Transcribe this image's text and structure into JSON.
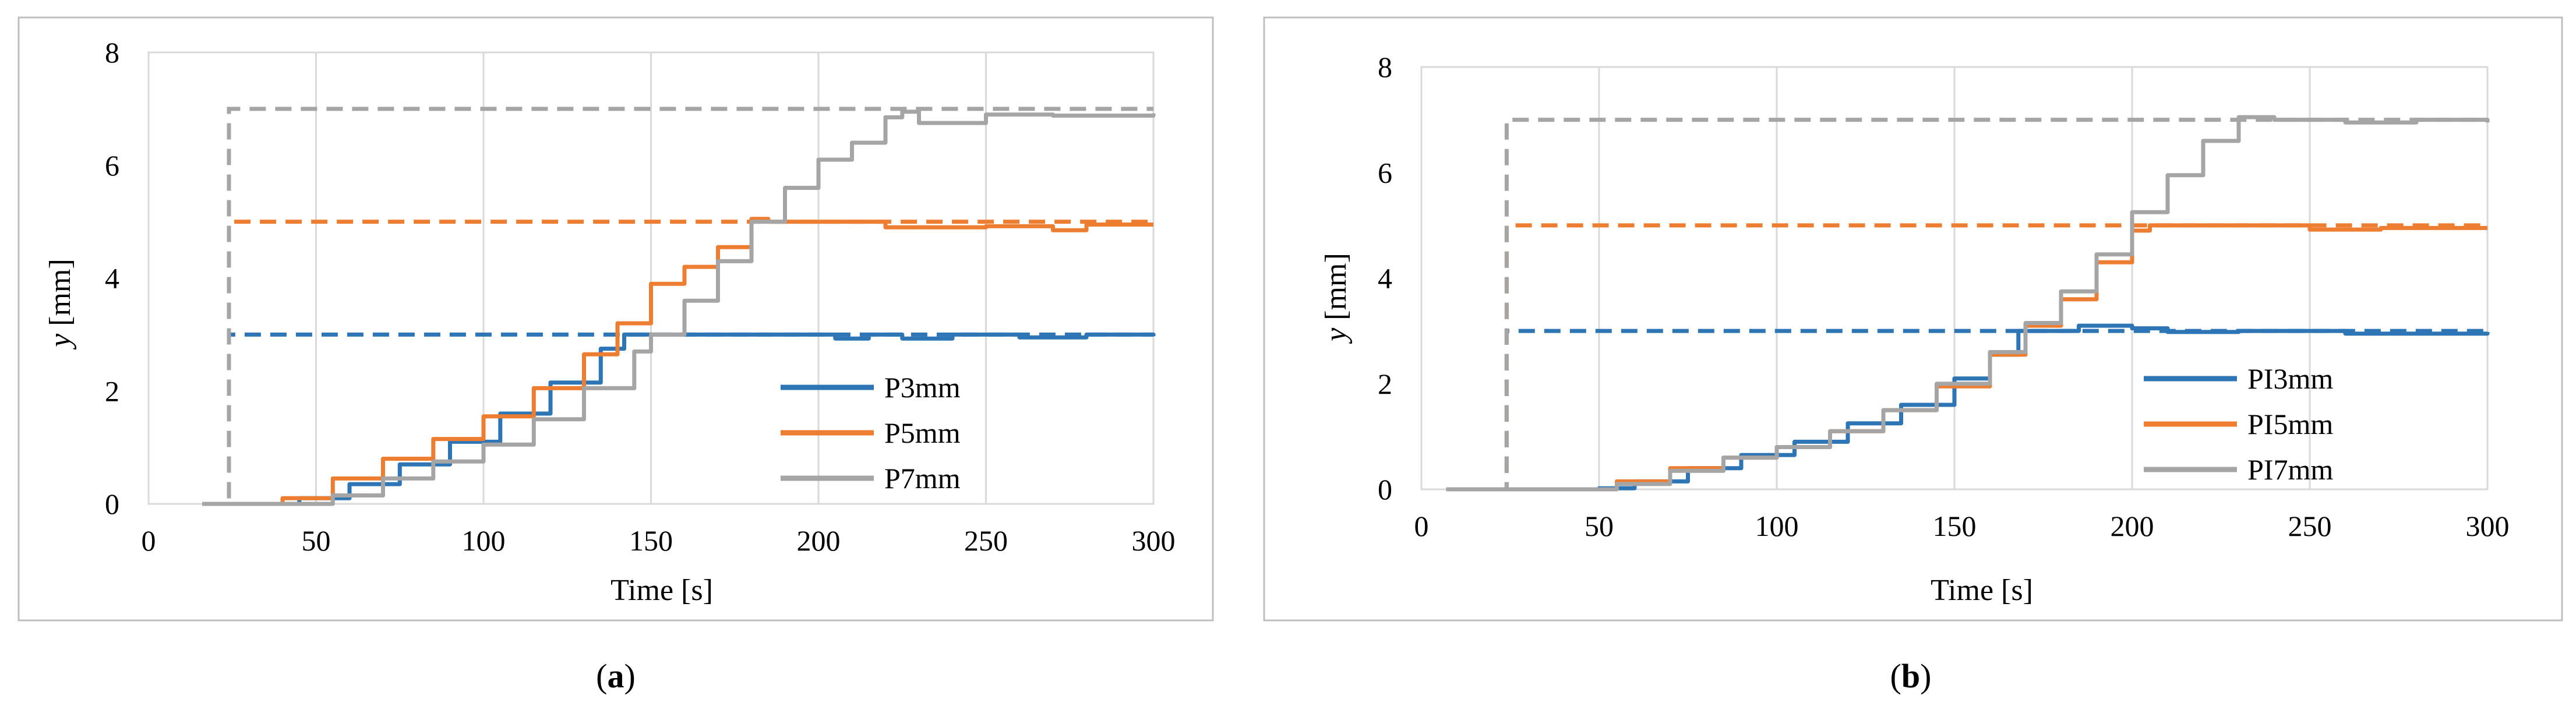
{
  "figure": {
    "caption_a_letter": "a",
    "caption_b_letter": "b"
  },
  "chart_data": [
    {
      "type": "line",
      "panel": "a",
      "xlabel": "Time [s]",
      "ylabel_var": "y",
      "ylabel_unit": " [mm]",
      "xlim": [
        0,
        300
      ],
      "ylim": [
        0,
        8
      ],
      "xticks": [
        0,
        50,
        100,
        150,
        200,
        250,
        300
      ],
      "yticks": [
        0,
        2,
        4,
        6,
        8
      ],
      "grid": "vertical",
      "legend_position": "center-right",
      "legend": [
        "P3mm",
        "P5mm",
        "P7mm"
      ],
      "colors": [
        "#2e75b6",
        "#ed7d31",
        "#a5a5a5"
      ],
      "setpoints": [
        {
          "name": "P3mm setpoint",
          "x": [
            18,
            24,
            24,
            300
          ],
          "y": [
            0,
            0,
            3,
            3
          ]
        },
        {
          "name": "P5mm setpoint",
          "x": [
            18,
            24,
            24,
            300
          ],
          "y": [
            0,
            0,
            5,
            5
          ]
        },
        {
          "name": "P7mm setpoint",
          "x": [
            18,
            24,
            24,
            300
          ],
          "y": [
            0,
            0,
            7,
            7
          ]
        }
      ],
      "series": [
        {
          "name": "P3mm",
          "x": [
            16,
            35,
            45,
            60,
            75,
            90,
            105,
            120,
            135,
            142,
            150,
            200,
            205,
            215,
            225,
            240,
            260,
            280,
            300
          ],
          "y": [
            0,
            0,
            0.1,
            0.35,
            0.7,
            1.1,
            1.6,
            2.15,
            2.75,
            3.0,
            3.0,
            3.0,
            2.93,
            3.0,
            2.93,
            3.0,
            2.95,
            3.0,
            2.97
          ]
        },
        {
          "name": "P5mm",
          "x": [
            16,
            30,
            40,
            55,
            70,
            85,
            100,
            115,
            130,
            140,
            150,
            160,
            170,
            180,
            185,
            210,
            220,
            250,
            270,
            280,
            300
          ],
          "y": [
            0,
            0,
            0.1,
            0.45,
            0.8,
            1.15,
            1.55,
            2.05,
            2.65,
            3.2,
            3.9,
            4.2,
            4.55,
            5.05,
            5.0,
            5.0,
            4.9,
            4.92,
            4.85,
            4.95,
            4.95
          ]
        },
        {
          "name": "P7mm",
          "x": [
            16,
            40,
            55,
            70,
            85,
            100,
            115,
            130,
            145,
            150,
            160,
            170,
            180,
            190,
            200,
            210,
            220,
            225,
            230,
            250,
            270,
            300
          ],
          "y": [
            0,
            0,
            0.15,
            0.45,
            0.75,
            1.05,
            1.5,
            2.05,
            2.7,
            3.0,
            3.6,
            4.3,
            5.0,
            5.6,
            6.1,
            6.4,
            6.85,
            6.95,
            6.75,
            6.9,
            6.88,
            6.92
          ]
        }
      ]
    },
    {
      "type": "line",
      "panel": "b",
      "xlabel": "Time [s]",
      "ylabel_var": "y",
      "ylabel_unit": " [mm]",
      "xlim": [
        0,
        300
      ],
      "ylim": [
        0,
        8
      ],
      "xticks": [
        0,
        50,
        100,
        150,
        200,
        250,
        300
      ],
      "yticks": [
        0,
        2,
        4,
        6,
        8
      ],
      "grid": "vertical",
      "legend_position": "center-right",
      "legend": [
        "PI3mm",
        "PI5mm",
        "PI7mm"
      ],
      "colors": [
        "#2e75b6",
        "#ed7d31",
        "#a5a5a5"
      ],
      "setpoints": [
        {
          "name": "PI3mm setpoint",
          "x": [
            7,
            24,
            24,
            300
          ],
          "y": [
            0,
            0,
            3,
            3
          ]
        },
        {
          "name": "PI5mm setpoint",
          "x": [
            7,
            24,
            24,
            300
          ],
          "y": [
            0,
            0,
            5,
            5
          ]
        },
        {
          "name": "PI7mm setpoint",
          "x": [
            7,
            24,
            24,
            300
          ],
          "y": [
            0,
            0,
            7,
            7
          ]
        }
      ],
      "series": [
        {
          "name": "PI3mm",
          "x": [
            7,
            40,
            50,
            60,
            75,
            90,
            105,
            120,
            135,
            150,
            160,
            168,
            175,
            185,
            200,
            210,
            230,
            260,
            300
          ],
          "y": [
            0,
            0,
            0.02,
            0.15,
            0.4,
            0.65,
            0.9,
            1.25,
            1.6,
            2.1,
            2.55,
            3.0,
            3.0,
            3.1,
            3.05,
            2.98,
            3.0,
            2.95,
            2.98
          ]
        },
        {
          "name": "PI5mm",
          "x": [
            7,
            45,
            55,
            70,
            85,
            100,
            115,
            130,
            145,
            160,
            170,
            180,
            190,
            200,
            205,
            230,
            250,
            270,
            300
          ],
          "y": [
            0,
            0,
            0.15,
            0.4,
            0.6,
            0.8,
            1.1,
            1.5,
            1.95,
            2.55,
            3.1,
            3.6,
            4.3,
            4.9,
            5.0,
            5.0,
            4.92,
            4.95,
            4.95
          ]
        },
        {
          "name": "PI7mm",
          "x": [
            7,
            45,
            55,
            70,
            85,
            100,
            115,
            130,
            145,
            160,
            170,
            180,
            190,
            200,
            210,
            220,
            230,
            240,
            260,
            280,
            300
          ],
          "y": [
            0,
            0,
            0.1,
            0.35,
            0.6,
            0.8,
            1.1,
            1.5,
            2.0,
            2.6,
            3.15,
            3.75,
            4.45,
            5.25,
            5.95,
            6.6,
            7.05,
            7.0,
            6.95,
            7.0,
            6.95
          ]
        }
      ]
    }
  ]
}
